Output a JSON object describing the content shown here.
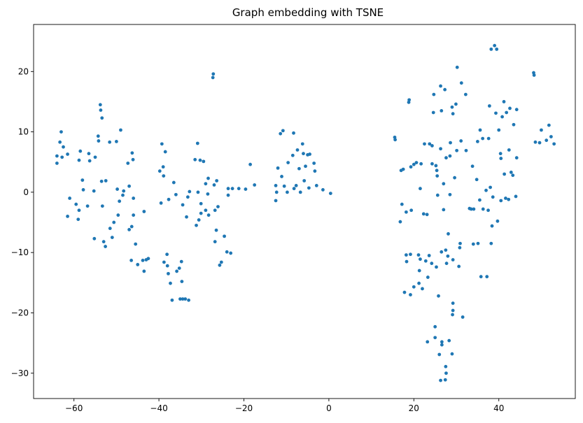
{
  "chart_data": {
    "type": "scatter",
    "title": "Graph embedding with TSNE",
    "xlabel": "",
    "ylabel": "",
    "xlim": [
      -69.5,
      58
    ],
    "ylim": [
      -34.2,
      27.8
    ],
    "xticks": [
      -60,
      -40,
      -20,
      0,
      20,
      40
    ],
    "yticks": [
      -30,
      -20,
      -10,
      0,
      10,
      20
    ],
    "xtick_labels": [
      "−60",
      "−40",
      "−20",
      "0",
      "20",
      "40"
    ],
    "ytick_labels": [
      "−30",
      "−20",
      "−10",
      "0",
      "10",
      "20"
    ],
    "grid": false,
    "marker_color": "#1f77b4",
    "series": [
      {
        "points": [
          [
            -64,
            6.0
          ],
          [
            -64,
            4.8
          ],
          [
            -63.3,
            8.3
          ],
          [
            -63,
            10.0
          ],
          [
            -62.8,
            5.8
          ],
          [
            -62.5,
            7.5
          ],
          [
            -61.5,
            6.3
          ],
          [
            -61,
            -1.0
          ],
          [
            -61.5,
            -4.0
          ],
          [
            -59.5,
            -2.0
          ],
          [
            -59,
            -4.5
          ],
          [
            -58.8,
            -3.0
          ],
          [
            -58.8,
            5.3
          ],
          [
            -58.5,
            6.8
          ],
          [
            -58,
            2.0
          ],
          [
            -57.8,
            0.4
          ],
          [
            -56.8,
            -2.3
          ],
          [
            -56.5,
            6.4
          ],
          [
            -56.3,
            5.2
          ],
          [
            -55.3,
            0.2
          ],
          [
            -55.2,
            -7.7
          ],
          [
            -55,
            5.8
          ],
          [
            -54.3,
            9.3
          ],
          [
            -54.2,
            8.5
          ],
          [
            -53.8,
            14.5
          ],
          [
            -53.7,
            13.6
          ],
          [
            -53.4,
            12.3
          ],
          [
            -53.5,
            1.8
          ],
          [
            -53.3,
            -2.3
          ],
          [
            -53,
            -8.2
          ],
          [
            -52.6,
            -9.0
          ],
          [
            -52.5,
            1.9
          ],
          [
            -51.6,
            8.3
          ],
          [
            -51.5,
            -6.0
          ],
          [
            -51,
            -7.5
          ],
          [
            -50.6,
            -5.0
          ],
          [
            -50,
            8.4
          ],
          [
            -49.8,
            0.5
          ],
          [
            -49.6,
            -3.8
          ],
          [
            -49.3,
            -1.5
          ],
          [
            -49,
            10.3
          ],
          [
            -48.5,
            -0.5
          ],
          [
            -48.3,
            0.2
          ],
          [
            -47.3,
            4.8
          ],
          [
            -47,
            1.0
          ],
          [
            -47,
            -6.2
          ],
          [
            -46.5,
            -11.3
          ],
          [
            -46.4,
            -5.7
          ],
          [
            -46.3,
            6.5
          ],
          [
            -46.1,
            5.4
          ],
          [
            -46,
            -3.8
          ],
          [
            -46,
            -1.0
          ],
          [
            -45.5,
            -8.6
          ],
          [
            -45,
            -12.0
          ],
          [
            -43.8,
            -11.3
          ],
          [
            -43.5,
            -13.1
          ],
          [
            -43.5,
            -3.2
          ],
          [
            -43,
            -11.2
          ],
          [
            -42.5,
            -11.0
          ],
          [
            -39.8,
            3.5
          ],
          [
            -39.5,
            -1.8
          ],
          [
            -39.3,
            8.0
          ],
          [
            -39,
            4.2
          ],
          [
            -38.9,
            2.7
          ],
          [
            -38.8,
            -11.6
          ],
          [
            -38.5,
            6.7
          ],
          [
            -38.1,
            -10.3
          ],
          [
            -38,
            -12.2
          ],
          [
            -37.8,
            -13.5
          ],
          [
            -37.7,
            -1.2
          ],
          [
            -37.3,
            -15.1
          ],
          [
            -36.9,
            -17.9
          ],
          [
            -36.5,
            1.6
          ],
          [
            -36,
            -0.4
          ],
          [
            -35.8,
            -13.1
          ],
          [
            -35.2,
            -12.6
          ],
          [
            -35,
            -17.7
          ],
          [
            -34.7,
            -11.5
          ],
          [
            -34.4,
            -17.7
          ],
          [
            -34.6,
            -14.8
          ],
          [
            -34.4,
            -2.1
          ],
          [
            -33.8,
            -17.7
          ],
          [
            -33.5,
            -4.1
          ],
          [
            -33,
            -17.9
          ],
          [
            -33.2,
            -0.8
          ],
          [
            -32.8,
            0.1
          ],
          [
            -31.5,
            5.4
          ],
          [
            -31.2,
            -5.5
          ],
          [
            -30.9,
            8.1
          ],
          [
            -30.8,
            0.0
          ],
          [
            -30.6,
            -4.6
          ],
          [
            -30.3,
            5.3
          ],
          [
            -30.1,
            -3.5
          ],
          [
            -30.1,
            -1.9
          ],
          [
            -29.5,
            5.1
          ],
          [
            -29,
            1.4
          ],
          [
            -29,
            -3.0
          ],
          [
            -28.5,
            -0.3
          ],
          [
            -28.4,
            2.3
          ],
          [
            -28.3,
            -3.8
          ],
          [
            -27.2,
            19.6
          ],
          [
            -27.3,
            19.0
          ],
          [
            -27,
            1.2
          ],
          [
            -26.8,
            -8.2
          ],
          [
            -26.5,
            -6.3
          ],
          [
            -26.8,
            -3.0
          ],
          [
            -26.4,
            1.9
          ],
          [
            -26.1,
            -2.4
          ],
          [
            -25.7,
            -12.1
          ],
          [
            -25.3,
            -11.6
          ],
          [
            -24.6,
            -7.3
          ],
          [
            -23.7,
            0.6
          ],
          [
            -24,
            -9.9
          ],
          [
            -23.7,
            -0.5
          ],
          [
            -23.1,
            -10.1
          ],
          [
            -22.7,
            0.6
          ],
          [
            -21.2,
            0.6
          ],
          [
            -19.6,
            0.5
          ],
          [
            -18.5,
            4.6
          ],
          [
            -17.5,
            1.2
          ],
          [
            -12.5,
            1.1
          ],
          [
            -12.5,
            -1.4
          ],
          [
            -12.3,
            0.0
          ],
          [
            -12,
            4.0
          ],
          [
            -11.4,
            9.7
          ],
          [
            -11.1,
            2.6
          ],
          [
            -10.8,
            10.2
          ],
          [
            -10.5,
            1.0
          ],
          [
            -9.8,
            0.0
          ],
          [
            -9.6,
            4.9
          ],
          [
            -8.5,
            6.1
          ],
          [
            -8.3,
            9.8
          ],
          [
            -8.2,
            0.6
          ],
          [
            -7.7,
            1.1
          ],
          [
            -7.4,
            7.0
          ],
          [
            -7,
            3.9
          ],
          [
            -6.7,
            0.0
          ],
          [
            -6.2,
            8.0
          ],
          [
            -6.0,
            6.4
          ],
          [
            -5.8,
            1.9
          ],
          [
            -5.5,
            4.3
          ],
          [
            -5,
            6.2
          ],
          [
            -4.7,
            0.7
          ],
          [
            -4.5,
            6.3
          ],
          [
            -3.5,
            4.8
          ],
          [
            -3.3,
            3.5
          ],
          [
            -2.9,
            1.1
          ],
          [
            -1.4,
            0.4
          ],
          [
            0.4,
            -0.2
          ],
          [
            15.5,
            9.1
          ],
          [
            15.6,
            8.7
          ],
          [
            17,
            3.6
          ],
          [
            16.8,
            -4.9
          ],
          [
            17.2,
            -2.0
          ],
          [
            17.5,
            3.8
          ],
          [
            17.8,
            -16.6
          ],
          [
            18.2,
            -3.3
          ],
          [
            18.2,
            -10.4
          ],
          [
            18.3,
            -11.5
          ],
          [
            18.9,
            15.3
          ],
          [
            18.8,
            14.9
          ],
          [
            19.2,
            -17.0
          ],
          [
            19.3,
            4.2
          ],
          [
            19.4,
            -3.0
          ],
          [
            19.2,
            -10.3
          ],
          [
            20,
            -15.7
          ],
          [
            20,
            4.6
          ],
          [
            20.6,
            4.9
          ],
          [
            21.1,
            -10.4
          ],
          [
            21.2,
            -15.1
          ],
          [
            21.3,
            -13.0
          ],
          [
            21.5,
            -11.1
          ],
          [
            21.5,
            0.6
          ],
          [
            21.7,
            4.7
          ],
          [
            22,
            -16.0
          ],
          [
            22.3,
            -3.6
          ],
          [
            22.5,
            8.0
          ],
          [
            22.8,
            -11.4
          ],
          [
            23.2,
            -24.8
          ],
          [
            23.1,
            -3.7
          ],
          [
            23.6,
            -10.5
          ],
          [
            23.7,
            8.0
          ],
          [
            23.3,
            -14.1
          ],
          [
            24.2,
            -11.8
          ],
          [
            24.3,
            4.7
          ],
          [
            24.6,
            13.2
          ],
          [
            24.3,
            7.7
          ],
          [
            24.7,
            16.2
          ],
          [
            25,
            -24.1
          ],
          [
            25,
            -22.3
          ],
          [
            25.3,
            -12.4
          ],
          [
            25.4,
            3.6
          ],
          [
            25.5,
            2.7
          ],
          [
            25.6,
            -0.5
          ],
          [
            25.2,
            4.4
          ],
          [
            25.8,
            -17.2
          ],
          [
            26,
            -26.9
          ],
          [
            26.3,
            7.2
          ],
          [
            26.3,
            17.6
          ],
          [
            26.5,
            -9.9
          ],
          [
            26.6,
            -24.8
          ],
          [
            26.5,
            13.5
          ],
          [
            26.3,
            -31.2
          ],
          [
            26.6,
            -25.3
          ],
          [
            27,
            1.4
          ],
          [
            27,
            -2.9
          ],
          [
            27.3,
            17.0
          ],
          [
            27.6,
            5.7
          ],
          [
            27.5,
            -9.6
          ],
          [
            27.4,
            -31.1
          ],
          [
            27.5,
            -28.9
          ],
          [
            27.6,
            -30.0
          ],
          [
            27.7,
            -11.8
          ],
          [
            28.0,
            -10.6
          ],
          [
            28.1,
            -6.9
          ],
          [
            28.3,
            -24.6
          ],
          [
            28.5,
            -0.4
          ],
          [
            28.5,
            6.0
          ],
          [
            28.6,
            8.2
          ],
          [
            29.0,
            14.1
          ],
          [
            29.1,
            -20.3
          ],
          [
            29.0,
            -26.8
          ],
          [
            29.2,
            -18.4
          ],
          [
            29.2,
            -11.2
          ],
          [
            29.2,
            -19.6
          ],
          [
            29.2,
            13.0
          ],
          [
            29.6,
            2.4
          ],
          [
            29.9,
            14.6
          ],
          [
            30.1,
            6.9
          ],
          [
            30.2,
            20.7
          ],
          [
            30.6,
            -12.3
          ],
          [
            30.8,
            -9.2
          ],
          [
            30.9,
            -8.5
          ],
          [
            31.1,
            8.5
          ],
          [
            31.2,
            18.1
          ],
          [
            31.5,
            -20.7
          ],
          [
            32.2,
            16.2
          ],
          [
            32.3,
            6.9
          ],
          [
            33.1,
            -2.7
          ],
          [
            33.5,
            -2.8
          ],
          [
            33.8,
            4.3
          ],
          [
            34.0,
            -8.6
          ],
          [
            34.1,
            -2.8
          ],
          [
            34.8,
            2.1
          ],
          [
            35,
            8.4
          ],
          [
            35.1,
            -8.5
          ],
          [
            35.5,
            -1.3
          ],
          [
            35.6,
            10.3
          ],
          [
            35.8,
            -14.0
          ],
          [
            36.2,
            8.9
          ],
          [
            36.3,
            -2.8
          ],
          [
            37,
            0.3
          ],
          [
            37.2,
            -14.0
          ],
          [
            37.5,
            -3.0
          ],
          [
            37.6,
            8.9
          ],
          [
            37.8,
            14.3
          ],
          [
            38.0,
            0.8
          ],
          [
            38.2,
            -8.5
          ],
          [
            38.6,
            -0.8
          ],
          [
            38.2,
            23.7
          ],
          [
            38.4,
            -5.6
          ],
          [
            39.0,
            24.3
          ],
          [
            39.3,
            13.1
          ],
          [
            39.5,
            23.7
          ],
          [
            39.7,
            -4.8
          ],
          [
            40,
            10.3
          ],
          [
            40.5,
            -1.4
          ],
          [
            40.5,
            5.6
          ],
          [
            40.4,
            6.4
          ],
          [
            40.8,
            12.5
          ],
          [
            41.2,
            15.0
          ],
          [
            41.3,
            3.0
          ],
          [
            41.6,
            -1.0
          ],
          [
            41.8,
            13.2
          ],
          [
            42.3,
            -1.2
          ],
          [
            42.4,
            7.0
          ],
          [
            42.6,
            13.9
          ],
          [
            42.9,
            3.3
          ],
          [
            43.3,
            2.8
          ],
          [
            43.5,
            11.2
          ],
          [
            44,
            -0.7
          ],
          [
            44.2,
            5.7
          ],
          [
            44.2,
            13.7
          ],
          [
            48.2,
            19.8
          ],
          [
            48.3,
            19.4
          ],
          [
            48.6,
            8.3
          ],
          [
            49.6,
            8.2
          ],
          [
            50,
            10.3
          ],
          [
            51.2,
            8.6
          ],
          [
            51.8,
            11.1
          ],
          [
            52.3,
            9.2
          ],
          [
            53,
            8.0
          ]
        ]
      }
    ]
  }
}
